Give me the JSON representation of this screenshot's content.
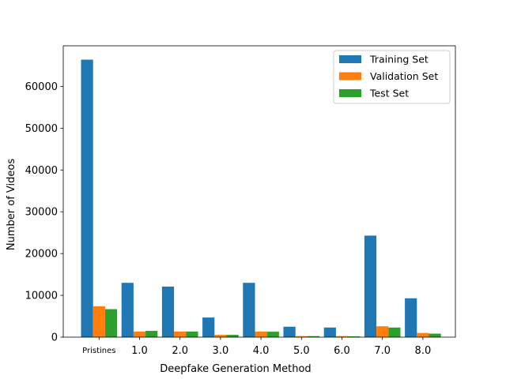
{
  "chart_data": {
    "type": "bar",
    "categories": [
      "Pristines",
      "1.0",
      "2.0",
      "3.0",
      "4.0",
      "5.0",
      "6.0",
      "7.0",
      "8.0"
    ],
    "series": [
      {
        "name": "Training Set",
        "color": "#1f77b4",
        "values": [
          66400,
          13000,
          12100,
          4700,
          13000,
          2500,
          2300,
          24300,
          9300
        ]
      },
      {
        "name": "Validation Set",
        "color": "#ff7f0e",
        "values": [
          7400,
          1350,
          1350,
          550,
          1350,
          250,
          250,
          2600,
          1000
        ]
      },
      {
        "name": "Test Set",
        "color": "#2ca02c",
        "values": [
          6700,
          1500,
          1350,
          550,
          1300,
          250,
          200,
          2300,
          850
        ]
      }
    ],
    "xlabel": "Deepfake Generation Method",
    "ylabel": "Number of Videos",
    "ylim": [
      0,
      69720
    ],
    "yticks": [
      0,
      10000,
      20000,
      30000,
      40000,
      50000,
      60000
    ],
    "grid": false,
    "legend_position": "top-right"
  }
}
